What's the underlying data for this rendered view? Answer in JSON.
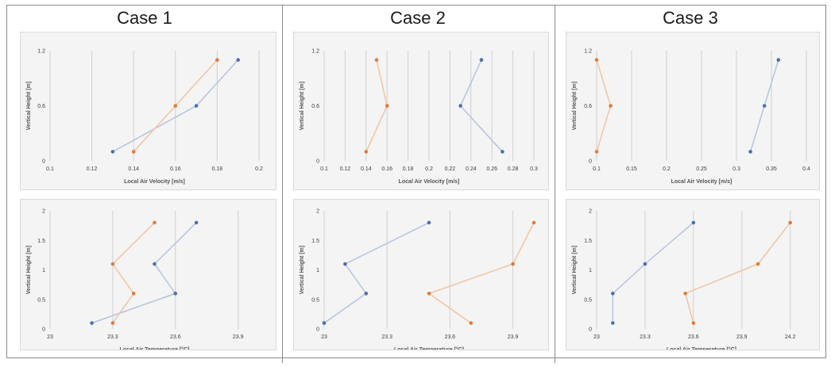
{
  "cases": [
    {
      "title": "Case 1"
    },
    {
      "title": "Case 2"
    },
    {
      "title": "Case 3"
    }
  ],
  "colors": {
    "series_a": "#4a6fb0",
    "series_b": "#e07b3a",
    "line_a": "#b9c6e0",
    "line_b": "#f2c6a7",
    "grid": "#d0d0d0",
    "axis_text": "#404040"
  },
  "chart_data": [
    {
      "type": "line",
      "case": "Case 1",
      "xlabel": "Local Air Velocity [m/s]",
      "ylabel": "Vertical Height [m]",
      "xlim": [
        0.1,
        0.2
      ],
      "ylim": [
        0,
        1.2
      ],
      "xticks": [
        0.1,
        0.12,
        0.14,
        0.16,
        0.18,
        0.2
      ],
      "xtick_labels": [
        "0.1",
        "0.12",
        "0.14",
        "0.16",
        "0.18",
        "0.2"
      ],
      "yticks": [
        0,
        0.6,
        1.2
      ],
      "ytick_labels": [
        "0",
        "0.6",
        "1.2"
      ],
      "series": [
        {
          "color": "#4a6fb0",
          "points": [
            [
              0.13,
              0.1
            ],
            [
              0.17,
              0.6
            ],
            [
              0.19,
              1.1
            ]
          ]
        },
        {
          "color": "#e07b3a",
          "points": [
            [
              0.14,
              0.1
            ],
            [
              0.16,
              0.6
            ],
            [
              0.18,
              1.1
            ]
          ]
        }
      ]
    },
    {
      "type": "line",
      "case": "Case 2",
      "xlabel": "Local Air Velocity [m/s]",
      "ylabel": "Vertical Height [m]",
      "xlim": [
        0.1,
        0.3
      ],
      "ylim": [
        0,
        1.2
      ],
      "xticks": [
        0.1,
        0.12,
        0.14,
        0.16,
        0.18,
        0.2,
        0.22,
        0.24,
        0.26,
        0.28,
        0.3
      ],
      "xtick_labels": [
        "0.1",
        "0.12",
        "0.14",
        "0.16",
        "0.18",
        "0.2",
        "0.22",
        "0.24",
        "0.26",
        "0.28",
        "0.3"
      ],
      "yticks": [
        0,
        0.6,
        1.2
      ],
      "ytick_labels": [
        "0",
        "0.6",
        "1.2"
      ],
      "series": [
        {
          "color": "#4a6fb0",
          "points": [
            [
              0.27,
              0.1
            ],
            [
              0.23,
              0.6
            ],
            [
              0.25,
              1.1
            ]
          ]
        },
        {
          "color": "#e07b3a",
          "points": [
            [
              0.14,
              0.1
            ],
            [
              0.16,
              0.6
            ],
            [
              0.15,
              1.1
            ]
          ]
        }
      ]
    },
    {
      "type": "line",
      "case": "Case 3",
      "xlabel": "Local Air Velocity [m/s]",
      "ylabel": "Vertical Height [m]",
      "xlim": [
        0.1,
        0.4
      ],
      "ylim": [
        0,
        1.2
      ],
      "xticks": [
        0.1,
        0.15,
        0.2,
        0.25,
        0.3,
        0.35,
        0.4
      ],
      "xtick_labels": [
        "0.1",
        "0.15",
        "0.2",
        "0.25",
        "0.3",
        "0.35",
        "0.4"
      ],
      "yticks": [
        0,
        0.6,
        1.2
      ],
      "ytick_labels": [
        "0",
        "0.6",
        "1.2"
      ],
      "series": [
        {
          "color": "#4a6fb0",
          "points": [
            [
              0.32,
              0.1
            ],
            [
              0.34,
              0.6
            ],
            [
              0.36,
              1.1
            ]
          ]
        },
        {
          "color": "#e07b3a",
          "points": [
            [
              0.1,
              0.1
            ],
            [
              0.12,
              0.6
            ],
            [
              0.1,
              1.1
            ]
          ]
        }
      ]
    },
    {
      "type": "line",
      "case": "Case 1",
      "xlabel": "Local Air Temperature [°C]",
      "ylabel": "Vertical Height [m]",
      "xlim": [
        23,
        24
      ],
      "ylim": [
        0,
        2
      ],
      "xticks": [
        23,
        23.3,
        23.6,
        23.9
      ],
      "xtick_labels": [
        "23",
        "23.3",
        "23.6",
        "23.9"
      ],
      "yticks": [
        0,
        0.5,
        1,
        1.5,
        2
      ],
      "ytick_labels": [
        "0",
        "0.5",
        "1",
        "1.5",
        "2"
      ],
      "series": [
        {
          "color": "#4a6fb0",
          "points": [
            [
              23.2,
              0.1
            ],
            [
              23.6,
              0.6
            ],
            [
              23.5,
              1.1
            ],
            [
              23.7,
              1.8
            ]
          ]
        },
        {
          "color": "#e07b3a",
          "points": [
            [
              23.3,
              0.1
            ],
            [
              23.4,
              0.6
            ],
            [
              23.3,
              1.1
            ],
            [
              23.5,
              1.8
            ]
          ]
        }
      ]
    },
    {
      "type": "line",
      "case": "Case 2",
      "xlabel": "Local Air Temperature [°C]",
      "ylabel": "Vertical Height [m]",
      "xlim": [
        23,
        24
      ],
      "ylim": [
        0,
        2
      ],
      "xticks": [
        23,
        23.3,
        23.6,
        23.9
      ],
      "xtick_labels": [
        "23",
        "23.3",
        "23.6",
        "23.9"
      ],
      "yticks": [
        0,
        0.5,
        1,
        1.5,
        2
      ],
      "ytick_labels": [
        "0",
        "0.5",
        "1",
        "1.5",
        "2"
      ],
      "series": [
        {
          "color": "#4a6fb0",
          "points": [
            [
              23.0,
              0.1
            ],
            [
              23.2,
              0.6
            ],
            [
              23.1,
              1.1
            ],
            [
              23.5,
              1.8
            ]
          ]
        },
        {
          "color": "#e07b3a",
          "points": [
            [
              23.7,
              0.1
            ],
            [
              23.5,
              0.6
            ],
            [
              23.9,
              1.1
            ],
            [
              24.0,
              1.8
            ]
          ]
        }
      ]
    },
    {
      "type": "line",
      "case": "Case 3",
      "xlabel": "Local Air Temperature [°C]",
      "ylabel": "Vertical Height [m]",
      "xlim": [
        23,
        24.3
      ],
      "ylim": [
        0,
        2
      ],
      "xticks": [
        23,
        23.3,
        23.6,
        23.9,
        24.2
      ],
      "xtick_labels": [
        "23",
        "23.3",
        "23.6",
        "23.9",
        "24.2"
      ],
      "yticks": [
        0,
        0.5,
        1,
        1.5,
        2
      ],
      "ytick_labels": [
        "0",
        "0.5",
        "1",
        "1.5",
        "2"
      ],
      "series": [
        {
          "color": "#4a6fb0",
          "points": [
            [
              23.1,
              0.1
            ],
            [
              23.1,
              0.6
            ],
            [
              23.3,
              1.1
            ],
            [
              23.6,
              1.8
            ]
          ]
        },
        {
          "color": "#e07b3a",
          "points": [
            [
              23.6,
              0.1
            ],
            [
              23.55,
              0.6
            ],
            [
              24.0,
              1.1
            ],
            [
              24.2,
              1.8
            ]
          ]
        }
      ]
    }
  ]
}
